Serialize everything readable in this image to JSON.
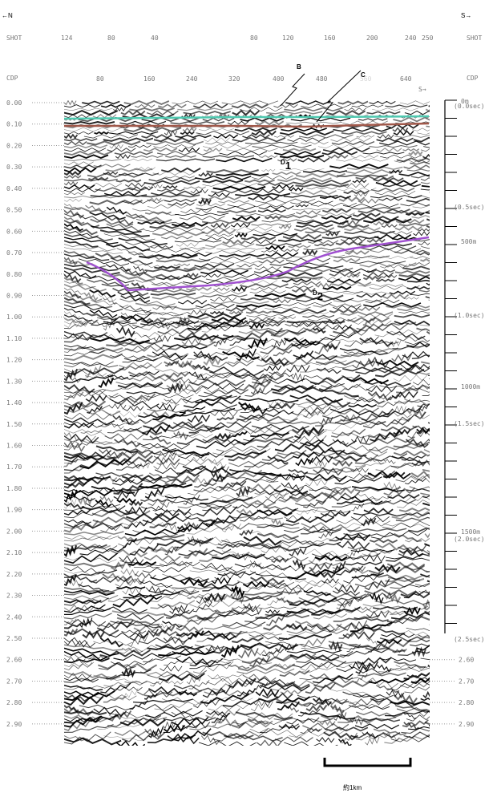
{
  "header": {
    "north": "←N",
    "south": "S→"
  },
  "shot": {
    "left_label": "SHOT",
    "right_label": "SHOT",
    "numbers": [
      "124",
      "80",
      "40",
      "80",
      "120",
      "160",
      "200",
      "240",
      "250"
    ]
  },
  "cdp": {
    "left_label": "CDP",
    "right_label": "CDP",
    "numbers": [
      "80",
      "160",
      "240",
      "320",
      "400",
      "480",
      "560",
      "640"
    ],
    "direction": "S→"
  },
  "time_axis": [
    "0.00",
    "0.10",
    "0.20",
    "0.30",
    "0.40",
    "0.50",
    "0.60",
    "0.70",
    "0.80",
    "0.90",
    "1.00",
    "1.10",
    "1.20",
    "1.30",
    "1.40",
    "1.50",
    "1.60",
    "1.70",
    "1.80",
    "1.90",
    "2.00",
    "2.10",
    "2.20",
    "2.30",
    "2.40",
    "2.50",
    "2.60",
    "2.70",
    "2.80",
    "2.90"
  ],
  "depth_axis": {
    "depths": [
      "0m",
      "500m",
      "1000m",
      "1500m"
    ],
    "seconds": [
      "(0.0sec)",
      "(0.5sec)",
      "(1.0sec)",
      "(1.5sec)",
      "(2.0sec)",
      "(2.5sec)"
    ],
    "lower_times": [
      "2.60",
      "2.70",
      "2.80",
      "2.90"
    ]
  },
  "annotations": {
    "b": "B",
    "c": "C",
    "d1": {
      "main": "D",
      "sub": "1"
    },
    "d2": {
      "main": "D",
      "sub": "2"
    }
  },
  "scale_bar": "約1km"
}
